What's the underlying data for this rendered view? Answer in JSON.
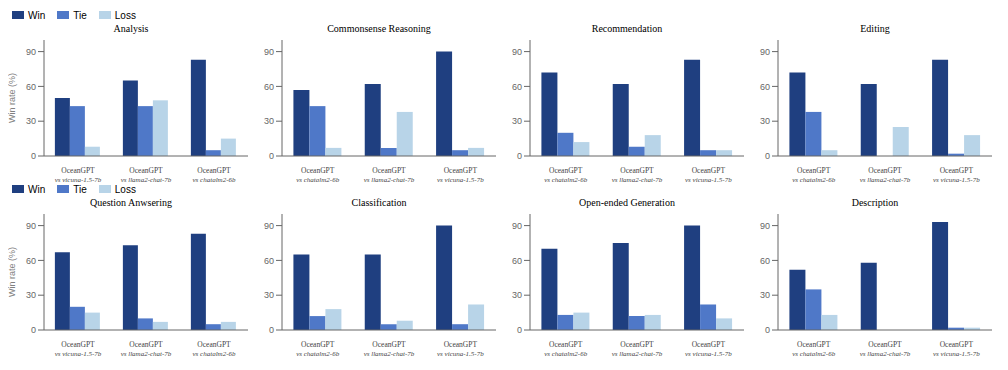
{
  "chart_data": [
    {
      "type": "bar",
      "title": "Analysis",
      "ylabel": "Win rate (%)",
      "legend": "upper left",
      "grid": false,
      "ylim": [
        0,
        100
      ],
      "yticks": [
        0,
        30,
        60,
        90
      ],
      "categories": [
        "OceanGPT\nvs vicuna-1.5-7b",
        "OceanGPT\nvs llama2-chat-7b",
        "OceanGPT\nvs chatglm2-6b"
      ],
      "series": [
        {
          "name": "Win",
          "color": "#1f3f80",
          "values": [
            50,
            65,
            83
          ]
        },
        {
          "name": "Tie",
          "color": "#4f78c8",
          "values": [
            43,
            43,
            5
          ]
        },
        {
          "name": "Loss",
          "color": "#b8d4e8",
          "values": [
            8,
            48,
            15
          ]
        }
      ]
    },
    {
      "type": "bar",
      "title": "Commonsense Reasoning",
      "grid": false,
      "ylim": [
        0,
        100
      ],
      "yticks": [
        0,
        30,
        60,
        90
      ],
      "categories": [
        "OceanGPT\nvs chatglm2-6b",
        "OceanGPT\nvs llama2-chat-7b",
        "OceanGPT\nvs vicuna-1.5-7b"
      ],
      "series": [
        {
          "name": "Win",
          "color": "#1f3f80",
          "values": [
            57,
            62,
            90
          ]
        },
        {
          "name": "Tie",
          "color": "#4f78c8",
          "values": [
            43,
            7,
            5
          ]
        },
        {
          "name": "Loss",
          "color": "#b8d4e8",
          "values": [
            7,
            38,
            7
          ]
        }
      ]
    },
    {
      "type": "bar",
      "title": "Recommendation",
      "grid": false,
      "ylim": [
        0,
        100
      ],
      "yticks": [
        0,
        30,
        60,
        90
      ],
      "categories": [
        "OceanGPT\nvs chatglm2-6b",
        "OceanGPT\nvs llama2-chat-7b",
        "OceanGPT\nvs vicuna-1.5-7b"
      ],
      "series": [
        {
          "name": "Win",
          "color": "#1f3f80",
          "values": [
            72,
            62,
            83
          ]
        },
        {
          "name": "Tie",
          "color": "#4f78c8",
          "values": [
            20,
            8,
            5
          ]
        },
        {
          "name": "Loss",
          "color": "#b8d4e8",
          "values": [
            12,
            18,
            5
          ]
        }
      ]
    },
    {
      "type": "bar",
      "title": "Editing",
      "grid": false,
      "ylim": [
        0,
        100
      ],
      "yticks": [
        0,
        30,
        60,
        90
      ],
      "categories": [
        "OceanGPT\nvs chatglm2-6b",
        "OceanGPT\nvs llama2-chat-7b",
        "OceanGPT\nvs vicuna-1.5-7b"
      ],
      "series": [
        {
          "name": "Win",
          "color": "#1f3f80",
          "values": [
            72,
            62,
            83
          ]
        },
        {
          "name": "Tie",
          "color": "#4f78c8",
          "values": [
            38,
            0,
            2
          ]
        },
        {
          "name": "Loss",
          "color": "#b8d4e8",
          "values": [
            5,
            25,
            18
          ]
        }
      ]
    },
    {
      "type": "bar",
      "title": "Question Anwsering",
      "ylabel": "Win rate (%)",
      "legend": "upper left",
      "grid": false,
      "ylim": [
        0,
        100
      ],
      "yticks": [
        0,
        30,
        60,
        90
      ],
      "categories": [
        "OceanGPT\nvs vicuna-1.5-7b",
        "OceanGPT\nvs llama2-chat-7b",
        "OceanGPT\nvs chatglm2-6b"
      ],
      "series": [
        {
          "name": "Win",
          "color": "#1f3f80",
          "values": [
            67,
            73,
            83
          ]
        },
        {
          "name": "Tie",
          "color": "#4f78c8",
          "values": [
            20,
            10,
            5
          ]
        },
        {
          "name": "Loss",
          "color": "#b8d4e8",
          "values": [
            15,
            7,
            7
          ]
        }
      ]
    },
    {
      "type": "bar",
      "title": "Classification",
      "grid": false,
      "ylim": [
        0,
        100
      ],
      "yticks": [
        0,
        30,
        60,
        90
      ],
      "categories": [
        "OceanGPT\nvs chatglm2-6b",
        "OceanGPT\nvs llama2-chat-7b",
        "OceanGPT\nvs vicuna-1.5-7b"
      ],
      "series": [
        {
          "name": "Win",
          "color": "#1f3f80",
          "values": [
            65,
            65,
            90
          ]
        },
        {
          "name": "Tie",
          "color": "#4f78c8",
          "values": [
            12,
            5,
            5
          ]
        },
        {
          "name": "Loss",
          "color": "#b8d4e8",
          "values": [
            18,
            8,
            22
          ]
        }
      ]
    },
    {
      "type": "bar",
      "title": "Open-ended Generation",
      "grid": false,
      "ylim": [
        0,
        100
      ],
      "yticks": [
        0,
        30,
        60,
        90
      ],
      "categories": [
        "OceanGPT\nvs chatglm2-6b",
        "OceanGPT\nvs llama2-chat-7b",
        "OceanGPT\nvs vicuna-1.5-7b"
      ],
      "series": [
        {
          "name": "Win",
          "color": "#1f3f80",
          "values": [
            70,
            75,
            90
          ]
        },
        {
          "name": "Tie",
          "color": "#4f78c8",
          "values": [
            13,
            12,
            22
          ]
        },
        {
          "name": "Loss",
          "color": "#b8d4e8",
          "values": [
            15,
            13,
            10
          ]
        }
      ]
    },
    {
      "type": "bar",
      "title": "Description",
      "grid": false,
      "ylim": [
        0,
        100
      ],
      "yticks": [
        0,
        30,
        60,
        90
      ],
      "categories": [
        "OceanGPT\nvs chatglm2-6b",
        "OceanGPT\nvs llama2-chat-7b",
        "OceanGPT\nvs vicuna-1.5-7b"
      ],
      "series": [
        {
          "name": "Win",
          "color": "#1f3f80",
          "values": [
            52,
            58,
            93
          ]
        },
        {
          "name": "Tie",
          "color": "#4f78c8",
          "values": [
            35,
            0,
            2
          ]
        },
        {
          "name": "Loss",
          "color": "#b8d4e8",
          "values": [
            13,
            0,
            2
          ]
        }
      ]
    }
  ]
}
